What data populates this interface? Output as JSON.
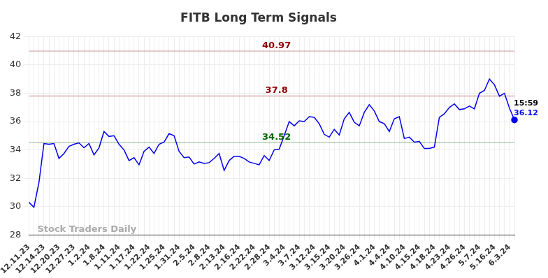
{
  "chart_data": {
    "type": "line",
    "title": "FITB Long Term Signals",
    "categories": [
      "12.11.23",
      null,
      null,
      "12.14.23",
      null,
      null,
      "12.20.23",
      null,
      null,
      "12.27.23",
      null,
      null,
      "1.2.24",
      null,
      null,
      "1.8.24",
      null,
      null,
      "1.11.24",
      null,
      null,
      "1.17.24",
      null,
      null,
      "1.22.24",
      null,
      null,
      "1.25.24",
      null,
      null,
      "1.31.24",
      null,
      null,
      "2.5.24",
      null,
      null,
      "2.8.24",
      null,
      null,
      "2.13.24",
      null,
      null,
      "2.16.24",
      null,
      null,
      "2.22.24",
      null,
      null,
      "2.28.24",
      null,
      null,
      "3.4.24",
      null,
      null,
      "3.7.24",
      null,
      null,
      "3.12.24",
      null,
      null,
      "3.15.24",
      null,
      null,
      "3.20.24",
      null,
      null,
      "3.26.24",
      null,
      null,
      "4.1.24",
      null,
      null,
      "4.4.24",
      null,
      null,
      "4.10.24",
      null,
      null,
      "4.15.24",
      null,
      null,
      "4.18.24",
      null,
      null,
      "4.23.24",
      null,
      null,
      "4.26.24",
      null,
      null,
      "5.7.24",
      null,
      null,
      "5.16.24",
      null,
      null,
      "6.3.24",
      null
    ],
    "values": [
      30.3,
      29.95,
      31.7,
      34.45,
      34.4,
      34.45,
      33.4,
      33.75,
      34.25,
      34.4,
      34.5,
      34.15,
      34.45,
      33.65,
      34.15,
      35.3,
      34.95,
      35.0,
      34.4,
      34.0,
      33.25,
      33.45,
      32.95,
      33.9,
      34.2,
      33.75,
      34.4,
      34.55,
      35.15,
      35.0,
      33.9,
      33.45,
      33.5,
      33.0,
      33.15,
      33.05,
      33.1,
      33.4,
      33.75,
      32.55,
      33.25,
      33.55,
      33.55,
      33.4,
      33.15,
      33.05,
      32.95,
      33.6,
      33.25,
      34.0,
      34.05,
      35.0,
      36.0,
      35.7,
      36.05,
      36.0,
      36.35,
      36.3,
      35.85,
      35.1,
      34.9,
      35.45,
      35.05,
      36.2,
      36.65,
      35.95,
      35.7,
      36.65,
      37.2,
      36.75,
      36.0,
      35.85,
      35.3,
      36.2,
      36.35,
      34.8,
      34.9,
      34.55,
      34.6,
      34.1,
      34.1,
      34.2,
      36.3,
      36.55,
      37.0,
      37.25,
      36.85,
      36.9,
      37.1,
      36.9,
      38.0,
      38.2,
      39.0,
      38.6,
      37.8,
      38.0,
      36.95,
      36.12
    ],
    "color": "#0000ee",
    "marker": "last",
    "ylim": [
      28,
      42
    ],
    "yticks": [
      28,
      30,
      32,
      34,
      36,
      38,
      40,
      42
    ],
    "grid": true,
    "hlines": [
      {
        "value": 40.97,
        "color": "#8b0000"
      },
      {
        "value": 37.8,
        "color": "#8b0000"
      },
      {
        "value": 34.52,
        "color": "#006400"
      }
    ],
    "end_label": "15:59",
    "watermark": "Stock Traders Daily"
  }
}
